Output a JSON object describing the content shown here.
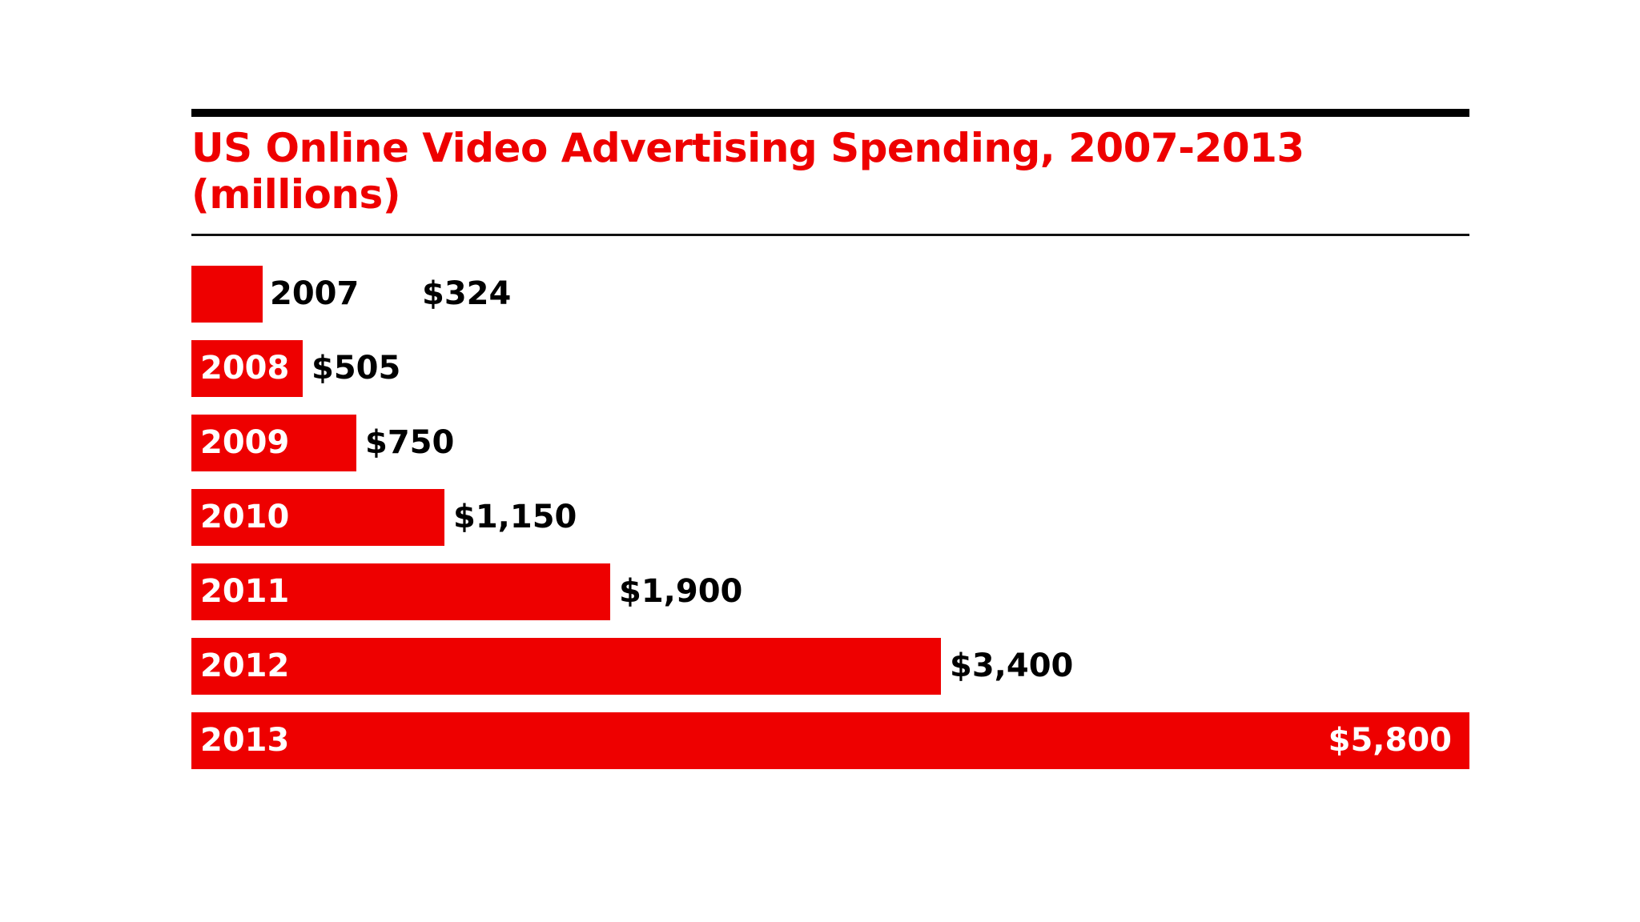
{
  "chart_data": {
    "type": "bar",
    "orientation": "horizontal",
    "title": "US Online Video Advertising Spending, 2007-2013",
    "subtitle": "(millions)",
    "categories": [
      "2007",
      "2008",
      "2009",
      "2010",
      "2011",
      "2012",
      "2013"
    ],
    "values": [
      324,
      505,
      750,
      1150,
      1900,
      3400,
      5800
    ],
    "value_labels": [
      "$324",
      "$505",
      "$750",
      "$1,150",
      "$1,900",
      "$3,400",
      "$5,800"
    ],
    "xlim": [
      0,
      5800
    ],
    "grid": false,
    "legend": "none",
    "bar_color": "#ee0000"
  }
}
